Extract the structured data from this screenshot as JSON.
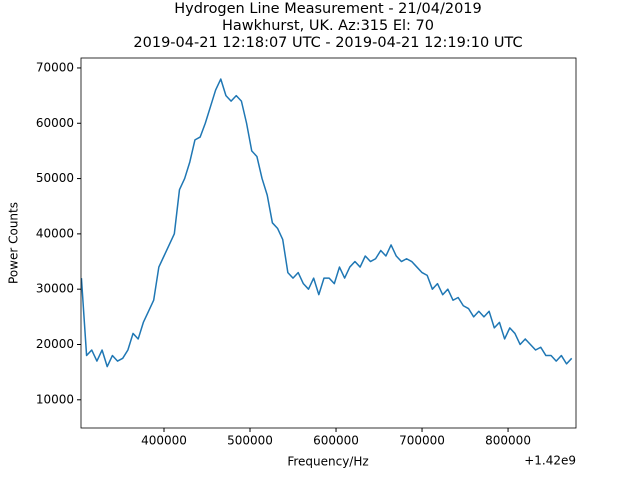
{
  "chart_data": {
    "type": "line",
    "title": [
      "Hydrogen Line Measurement - 21/04/2019",
      "Hawkhurst, UK. Az:315 El: 70",
      "2019-04-21 12:18:07 UTC - 2019-04-21 12:19:10 UTC"
    ],
    "x_label": "Frequency/Hz",
    "y_label": "Power Counts",
    "x_offset_label": "+1.42e9",
    "x": [
      304000,
      310000,
      316000,
      322000,
      328000,
      334000,
      340000,
      346000,
      352000,
      358000,
      364000,
      370000,
      376000,
      382000,
      388000,
      394000,
      400000,
      406000,
      412000,
      418000,
      424000,
      430000,
      436000,
      442000,
      448000,
      454000,
      460000,
      466000,
      472000,
      478000,
      484000,
      490000,
      496000,
      502000,
      508000,
      514000,
      520000,
      526000,
      532000,
      538000,
      544000,
      550000,
      556000,
      562000,
      568000,
      574000,
      580000,
      586000,
      592000,
      598000,
      604000,
      610000,
      616000,
      622000,
      628000,
      634000,
      640000,
      646000,
      652000,
      658000,
      664000,
      670000,
      676000,
      682000,
      688000,
      694000,
      700000,
      706000,
      712000,
      718000,
      724000,
      730000,
      736000,
      742000,
      748000,
      754000,
      760000,
      766000,
      772000,
      778000,
      784000,
      790000,
      796000,
      802000,
      808000,
      814000,
      820000,
      826000,
      832000,
      838000,
      844000,
      850000,
      856000,
      862000,
      868000,
      874000
    ],
    "series": [
      {
        "name": "Power",
        "color": "#1f77b4",
        "values": [
          32000,
          18000,
          19000,
          17000,
          19000,
          16000,
          18000,
          17000,
          17500,
          19000,
          22000,
          21000,
          24000,
          26000,
          28000,
          34000,
          36000,
          38000,
          40000,
          48000,
          50000,
          53000,
          57000,
          57500,
          60000,
          63000,
          66000,
          68000,
          65000,
          64000,
          65000,
          64000,
          60000,
          55000,
          54000,
          50000,
          47000,
          42000,
          41000,
          39000,
          33000,
          32000,
          33000,
          31000,
          30000,
          32000,
          29000,
          32000,
          32000,
          31000,
          34000,
          32000,
          34000,
          35000,
          34000,
          36000,
          35000,
          35500,
          37000,
          36000,
          38000,
          36000,
          35000,
          35500,
          35000,
          34000,
          33000,
          32500,
          30000,
          31000,
          29000,
          30000,
          28000,
          28500,
          27000,
          26500,
          25000,
          26000,
          25000,
          26000,
          23000,
          24000,
          21000,
          23000,
          22000,
          20000,
          21000,
          20000,
          19000,
          19500,
          18000,
          18000,
          17000,
          18000,
          16500,
          17500
        ]
      }
    ],
    "xlim": [
      303500,
      879000
    ],
    "ylim": [
      4900,
      71800
    ],
    "xticks": [
      400000,
      500000,
      600000,
      700000,
      800000
    ],
    "yticks": [
      10000,
      20000,
      30000,
      40000,
      50000,
      60000,
      70000
    ],
    "grid": false
  }
}
